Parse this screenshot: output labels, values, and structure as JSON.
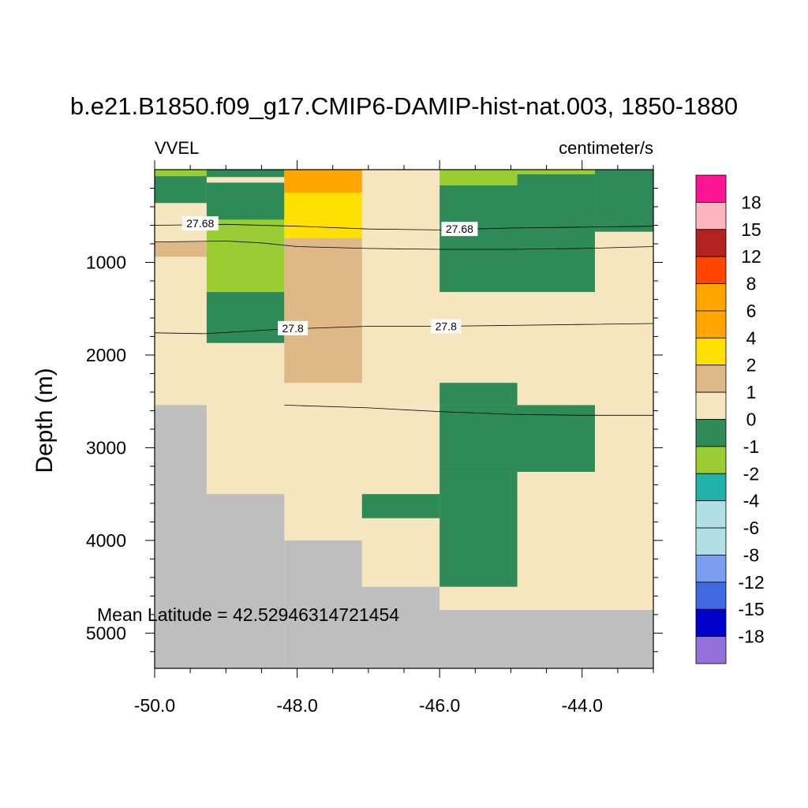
{
  "chart_data": {
    "type": "heatmap",
    "title": "b.e21.B1850.f09_g17.CMIP6-DAMIP-hist-nat.003, 1850-1880",
    "left_string": "VVEL",
    "right_string": "centimeter/s",
    "ylabel": "Depth (m)",
    "xlabel": "",
    "annotation": "Mean Latitude = 42.52946314721454",
    "xlim": [
      -50.0,
      -43.0
    ],
    "ylim": [
      5380,
      0
    ],
    "x_ticks": [
      -50.0,
      -48.0,
      -46.0,
      -44.0
    ],
    "x_tick_labels": [
      "-50.0",
      "-48.0",
      "-46.0",
      "-44.0"
    ],
    "y_ticks": [
      1000,
      2000,
      3000,
      4000,
      5000
    ],
    "y_tick_labels": [
      "1000",
      "2000",
      "3000",
      "4000",
      "5000"
    ],
    "colorbar_labels": [
      "18",
      "15",
      "12",
      "8",
      "6",
      "4",
      "2",
      "1",
      "0",
      "-1",
      "-2",
      "-4",
      "-6",
      "-8",
      "-12",
      "-15",
      "-18"
    ],
    "colorbar_colors": [
      "#ff1493",
      "#ffb6c1",
      "#b22222",
      "#ff4500",
      "#ffa500",
      "#ffa500",
      "#ffe000",
      "#deb887",
      "#f5e6c0",
      "#2e8b57",
      "#9acd32",
      "#20b2aa",
      "#b0e0e6",
      "#b0e0e6",
      "#7b9ef0",
      "#4169e1",
      "#0000cd",
      "#9370db"
    ],
    "land_color": "#bebebe",
    "background_value_color": "#f5e6c0",
    "cells": [
      {
        "x": [
          -50.0,
          -49.27
        ],
        "y": [
          0,
          70
        ],
        "color": "#9acd32"
      },
      {
        "x": [
          -50.0,
          -49.27
        ],
        "y": [
          70,
          360
        ],
        "color": "#2e8b57"
      },
      {
        "x": [
          -50.0,
          -49.27
        ],
        "y": [
          780,
          940
        ],
        "color": "#deb887"
      },
      {
        "x": [
          -49.27,
          -48.18
        ],
        "y": [
          0,
          80
        ],
        "color": "#2e8b57"
      },
      {
        "x": [
          -49.27,
          -48.18
        ],
        "y": [
          140,
          540
        ],
        "color": "#2e8b57"
      },
      {
        "x": [
          -49.27,
          -48.18
        ],
        "y": [
          540,
          1320
        ],
        "color": "#9acd32"
      },
      {
        "x": [
          -49.27,
          -48.18
        ],
        "y": [
          1320,
          1870
        ],
        "color": "#2e8b57"
      },
      {
        "x": [
          -48.18,
          -47.09
        ],
        "y": [
          0,
          250
        ],
        "color": "#ffa500"
      },
      {
        "x": [
          -48.18,
          -47.09
        ],
        "y": [
          250,
          740
        ],
        "color": "#ffe000"
      },
      {
        "x": [
          -48.18,
          -47.09
        ],
        "y": [
          740,
          2300
        ],
        "color": "#deb887"
      },
      {
        "x": [
          -46.0,
          -44.91
        ],
        "y": [
          0,
          170
        ],
        "color": "#9acd32"
      },
      {
        "x": [
          -44.91,
          -43.82
        ],
        "y": [
          0,
          50
        ],
        "color": "#9acd32"
      },
      {
        "x": [
          -44.91,
          -43.82
        ],
        "y": [
          50,
          170
        ],
        "color": "#2e8b57"
      },
      {
        "x": [
          -43.82,
          -43.0
        ],
        "y": [
          0,
          670
        ],
        "color": "#2e8b57"
      },
      {
        "x": [
          -46.0,
          -43.82
        ],
        "y": [
          170,
          1320
        ],
        "color": "#2e8b57"
      },
      {
        "x": [
          -46.0,
          -44.91
        ],
        "y": [
          2300,
          2540
        ],
        "color": "#2e8b57"
      },
      {
        "x": [
          -46.0,
          -43.82
        ],
        "y": [
          2540,
          3260
        ],
        "color": "#2e8b57"
      },
      {
        "x": [
          -46.0,
          -44.91
        ],
        "y": [
          3260,
          4500
        ],
        "color": "#2e8b57"
      },
      {
        "x": [
          -47.09,
          -46.0
        ],
        "y": [
          3500,
          3760
        ],
        "color": "#2e8b57"
      }
    ],
    "land": [
      {
        "x": [
          -50.0,
          -49.27
        ],
        "y": [
          2540,
          5380
        ]
      },
      {
        "x": [
          -49.27,
          -48.18
        ],
        "y": [
          3500,
          5380
        ]
      },
      {
        "x": [
          -48.18,
          -47.09
        ],
        "y": [
          4000,
          5380
        ]
      },
      {
        "x": [
          -47.09,
          -46.0
        ],
        "y": [
          4500,
          5380
        ]
      },
      {
        "x": [
          -46.0,
          -43.0
        ],
        "y": [
          4750,
          5380
        ]
      }
    ],
    "contours": [
      {
        "label": "27.68",
        "label_at": [
          [
            -49.36,
            580
          ],
          [
            -45.72,
            640
          ]
        ],
        "points": [
          [
            -50.0,
            600
          ],
          [
            -49.0,
            590
          ],
          [
            -48.0,
            610
          ],
          [
            -47.0,
            640
          ],
          [
            -46.0,
            650
          ],
          [
            -45.0,
            630
          ],
          [
            -44.0,
            620
          ],
          [
            -43.0,
            610
          ]
        ]
      },
      {
        "points": [
          [
            -50.0,
            780
          ],
          [
            -49.0,
            770
          ],
          [
            -48.5,
            790
          ],
          [
            -48.0,
            830
          ],
          [
            -47.0,
            850
          ],
          [
            -46.0,
            860
          ],
          [
            -45.0,
            860
          ],
          [
            -44.0,
            850
          ],
          [
            -43.0,
            830
          ]
        ]
      },
      {
        "label": "27.8",
        "label_at": [
          [
            -48.06,
            1710
          ],
          [
            -45.91,
            1690
          ]
        ],
        "points": [
          [
            -50.0,
            1760
          ],
          [
            -49.3,
            1770
          ],
          [
            -48.2,
            1720
          ],
          [
            -47.0,
            1690
          ],
          [
            -46.0,
            1690
          ],
          [
            -45.0,
            1680
          ],
          [
            -44.0,
            1670
          ],
          [
            -43.0,
            1660
          ]
        ]
      },
      {
        "points": [
          [
            -48.18,
            2540
          ],
          [
            -47.0,
            2570
          ],
          [
            -46.0,
            2610
          ],
          [
            -45.0,
            2640
          ],
          [
            -44.0,
            2650
          ],
          [
            -43.0,
            2650
          ]
        ]
      }
    ]
  }
}
